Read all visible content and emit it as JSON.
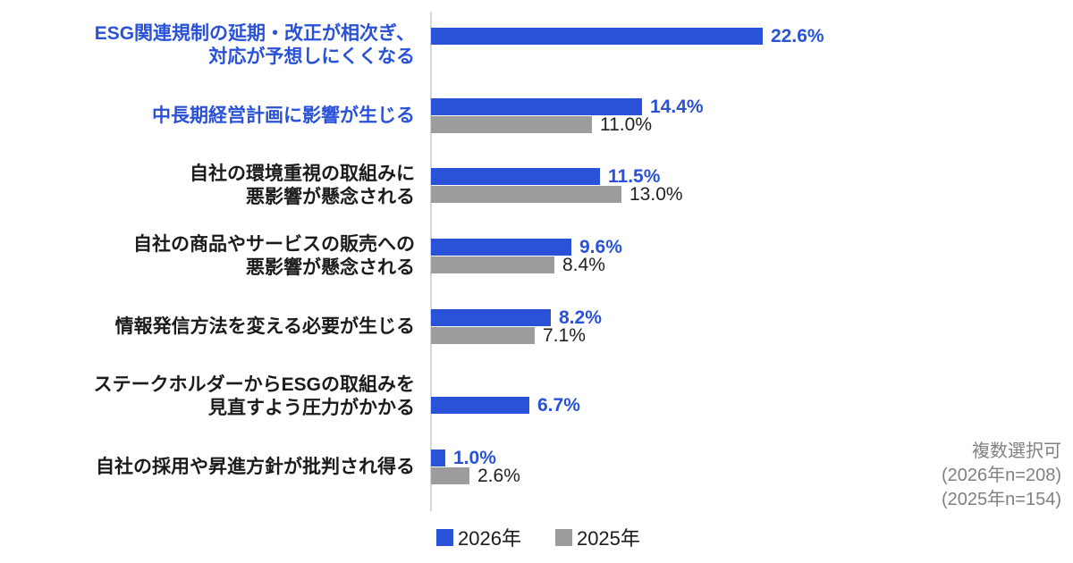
{
  "chart_data": {
    "type": "bar",
    "orientation": "horizontal",
    "value_unit": "%",
    "axis": {
      "min": 0,
      "gridlines": false
    },
    "legend_position": "bottom",
    "categories": [
      "ESG関連規制の延期・改正が相次ぎ、対応が予想しにくくなる",
      "中長期経営計画に影響が生じる",
      "自社の環境重視の取組みに悪影響が懸念される",
      "自社の商品やサービスの販売への悪影響が懸念される",
      "情報発信方法を変える必要が生じる",
      "ステークホルダーからESGの取組みを見直すよう圧力がかかる",
      "自社の採用や昇進方針が批判され得る"
    ],
    "series": [
      {
        "name": "2026年",
        "color": "#2A52D8",
        "values": [
          22.6,
          14.4,
          11.5,
          9.6,
          8.2,
          6.7,
          1.0
        ]
      },
      {
        "name": "2025年",
        "color": "#9C9C9C",
        "values": [
          null,
          11.0,
          13.0,
          8.4,
          7.1,
          null,
          2.6
        ]
      }
    ],
    "items": [
      {
        "label_lines": [
          "ESG関連規制の延期・改正が相次ぎ、",
          "対応が予想しにくくなる"
        ],
        "label_highlighted": true,
        "value_2026": 22.6,
        "value_2026_label": "22.6%",
        "value_2025": null,
        "value_2025_label": null,
        "bar_2026_position": "top"
      },
      {
        "label_lines": [
          "中長期経営計画に影響が生じる"
        ],
        "label_highlighted": true,
        "value_2026": 14.4,
        "value_2026_label": "14.4%",
        "value_2025": 11.0,
        "value_2025_label": "11.0%",
        "bar_2026_position": "top"
      },
      {
        "label_lines": [
          "自社の環境重視の取組みに",
          "悪影響が懸念される"
        ],
        "label_highlighted": false,
        "value_2026": 11.5,
        "value_2026_label": "11.5%",
        "value_2025": 13.0,
        "value_2025_label": "13.0%",
        "bar_2026_position": "top"
      },
      {
        "label_lines": [
          "自社の商品やサービスの販売への",
          "悪影響が懸念される"
        ],
        "label_highlighted": false,
        "value_2026": 9.6,
        "value_2026_label": "9.6%",
        "value_2025": 8.4,
        "value_2025_label": "8.4%",
        "bar_2026_position": "top"
      },
      {
        "label_lines": [
          "情報発信方法を変える必要が生じる"
        ],
        "label_highlighted": false,
        "value_2026": 8.2,
        "value_2026_label": "8.2%",
        "value_2025": 7.1,
        "value_2025_label": "7.1%",
        "bar_2026_position": "top"
      },
      {
        "label_lines": [
          "ステークホルダーからESGの取組みを",
          "見直すよう圧力がかかる"
        ],
        "label_highlighted": false,
        "value_2026": 6.7,
        "value_2026_label": "6.7%",
        "value_2025": null,
        "value_2025_label": null,
        "bar_2026_position": "bottom"
      },
      {
        "label_lines": [
          "自社の採用や昇進方針が批判され得る"
        ],
        "label_highlighted": false,
        "value_2026": 1.0,
        "value_2026_label": "1.0%",
        "value_2025": 2.6,
        "value_2025_label": "2.6%",
        "bar_2026_position": "top"
      }
    ],
    "notes": [
      "複数選択可",
      "(2026年n=208)",
      "(2025年n=154)"
    ]
  },
  "legend": {
    "items": [
      {
        "label": "2026年",
        "color": "#2A52D8"
      },
      {
        "label": "2025年",
        "color": "#9C9C9C"
      }
    ]
  },
  "colors": {
    "bar_2026": "#2A52D8",
    "bar_2025": "#9C9C9C",
    "highlighted_label": "#2A52D8",
    "normal_label": "#1B1B1B",
    "value_2026_text": "#2A52D8",
    "value_2025_text": "#1F1F1F",
    "note_text": "#808080",
    "axis_line": "#D7D7D7"
  }
}
